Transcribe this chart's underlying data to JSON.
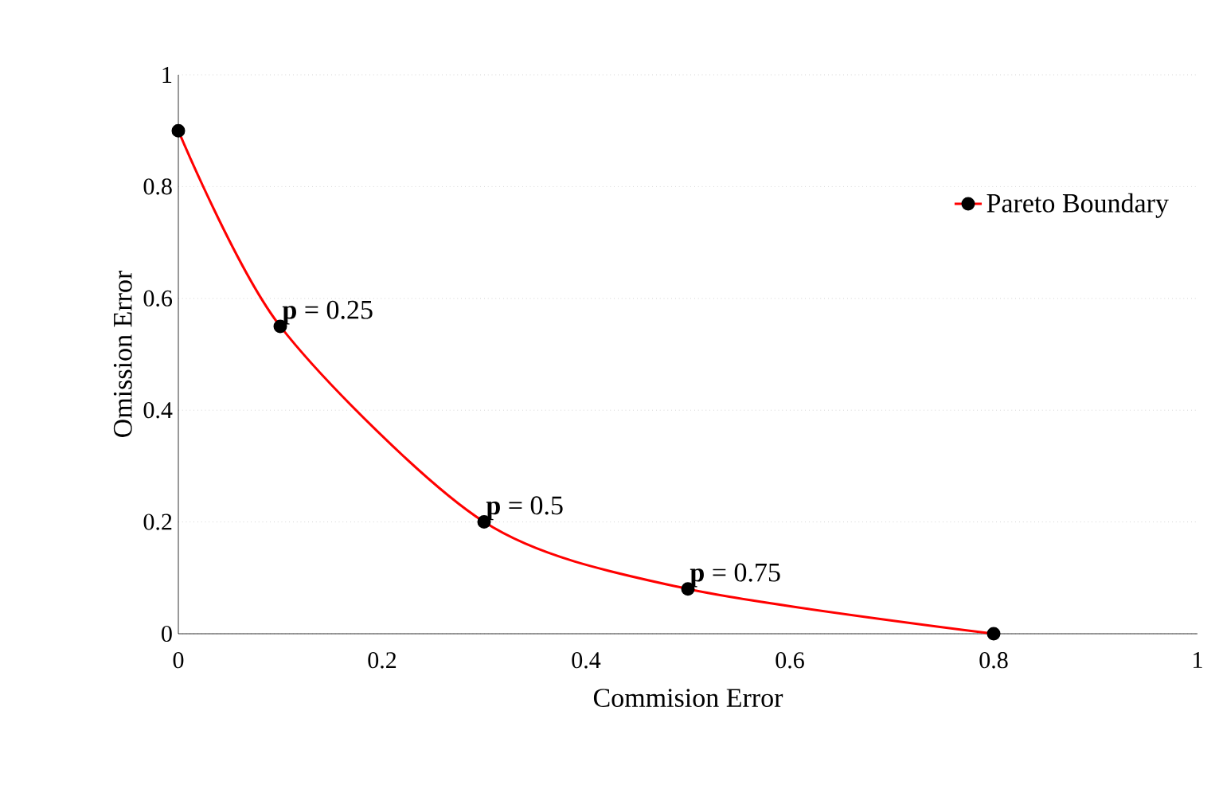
{
  "chart_data": {
    "type": "line",
    "xlabel": "Commision Error",
    "ylabel": "Omission Error",
    "x": [
      0,
      0.1,
      0.3,
      0.5,
      0.8
    ],
    "series": [
      {
        "name": "Pareto Boundary",
        "color": "#ff0000",
        "values": [
          0.9,
          0.55,
          0.2,
          0.08,
          0
        ]
      }
    ],
    "xlim": [
      0,
      1
    ],
    "ylim": [
      0,
      1
    ],
    "xticks": [
      0,
      0.2,
      0.4,
      0.6,
      0.8,
      1
    ],
    "yticks": [
      0,
      0.2,
      0.4,
      0.6,
      0.8,
      1
    ],
    "grid": "y",
    "legend": "top right",
    "marker": "circle",
    "line_style": "solid",
    "annotations": [
      {
        "text": "**p** = 0.25",
        "x": 0.1,
        "y": 0.55
      },
      {
        "text": "**p** = 0.5",
        "x": 0.3,
        "y": 0.2
      },
      {
        "text": "**p** = 0.75",
        "x": 0.5,
        "y": 0.08
      }
    ]
  }
}
